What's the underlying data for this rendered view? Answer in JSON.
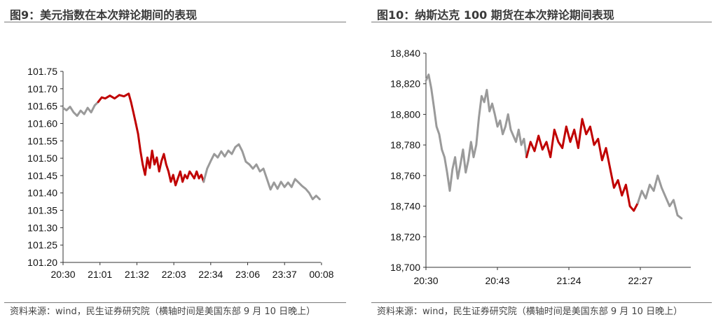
{
  "colors": {
    "gray_series": "#9a9a9a",
    "red_series": "#c00000",
    "axis": "#333333"
  },
  "charts": [
    {
      "title": "图9：美元指数在本次辩论期间的表现",
      "source": "资料来源：wind，民生证券研究院（横轴时间是美国东部 9 月 10 日晚上）",
      "chart_data": {
        "type": "line",
        "x_tick_labels": [
          "20:30",
          "21:01",
          "21:32",
          "22:03",
          "22:34",
          "23:06",
          "23:37",
          "00:08"
        ],
        "y_tick_labels": [
          "101.20",
          "101.25",
          "101.30",
          "101.35",
          "101.40",
          "101.45",
          "101.50",
          "101.55",
          "101.60",
          "101.65",
          "101.70",
          "101.75"
        ],
        "ylim": [
          101.2,
          101.75
        ],
        "x_range_minutes": [
          0,
          220
        ],
        "grid": false,
        "series": [
          {
            "role": "before",
            "color": "#9a9a9a",
            "x": [
              0,
              3,
              6,
              9,
              12,
              15,
              18,
              21,
              24,
              27,
              30
            ],
            "y": [
              101.645,
              101.638,
              101.648,
              101.632,
              101.622,
              101.637,
              101.627,
              101.645,
              101.632,
              101.652,
              101.662
            ]
          },
          {
            "role": "debate",
            "color": "#c00000",
            "x": [
              30,
              33,
              36,
              40,
              44,
              48,
              52,
              56,
              58,
              60,
              62,
              64,
              66,
              68,
              70,
              72,
              74,
              76,
              78,
              80,
              82,
              84,
              86,
              88,
              90,
              92,
              94,
              96,
              98,
              100,
              102,
              104,
              106,
              108,
              110,
              112,
              114,
              116,
              118,
              120
            ],
            "y": [
              101.662,
              101.675,
              101.672,
              101.68,
              101.672,
              101.682,
              101.678,
              101.686,
              101.662,
              101.632,
              101.602,
              101.57,
              101.522,
              101.482,
              101.452,
              101.502,
              101.472,
              101.522,
              101.482,
              101.502,
              101.462,
              101.492,
              101.512,
              101.482,
              101.462,
              101.432,
              101.452,
              101.422,
              101.442,
              101.462,
              101.432,
              101.452,
              101.442,
              101.462,
              101.452,
              101.442,
              101.462,
              101.442,
              101.452,
              101.432
            ]
          },
          {
            "role": "after",
            "color": "#9a9a9a",
            "x": [
              120,
              123,
              126,
              129,
              132,
              135,
              138,
              141,
              144,
              147,
              150,
              153,
              156,
              159,
              162,
              165,
              168,
              171,
              174,
              177,
              180,
              183,
              186,
              189,
              192,
              195,
              198,
              201,
              204,
              207,
              210,
              213,
              216,
              219
            ],
            "y": [
              101.432,
              101.47,
              101.492,
              101.512,
              101.502,
              101.52,
              101.505,
              101.522,
              101.512,
              101.532,
              101.54,
              101.52,
              101.49,
              101.482,
              101.47,
              101.482,
              101.462,
              101.47,
              101.44,
              101.41,
              101.43,
              101.412,
              101.432,
              101.417,
              101.43,
              101.417,
              101.44,
              101.43,
              101.42,
              101.412,
              101.4,
              101.382,
              101.392,
              101.382
            ]
          }
        ]
      }
    },
    {
      "title": "图10：纳斯达克 100 期货在本次辩论期间表现",
      "source": "资料来源：wind，民生证券研究院（横轴时间是美国东部 9 月 10 日晚上）",
      "chart_data": {
        "type": "line",
        "x_tick_labels": [
          "20:30",
          "20:43",
          "21:24",
          "22:27"
        ],
        "y_tick_labels": [
          "18,700",
          "18,720",
          "18,740",
          "18,760",
          "18,780",
          "18,800",
          "18,820",
          "18,840"
        ],
        "ylim": [
          18700,
          18840
        ],
        "x_range_minutes": [
          0,
          200
        ],
        "grid": false,
        "series": [
          {
            "role": "before",
            "color": "#9a9a9a",
            "x": [
              0,
              2,
              4,
              6,
              8,
              10,
              12,
              14,
              16,
              18,
              20,
              22,
              24,
              26,
              28,
              30,
              32,
              34,
              36,
              38,
              40,
              42,
              44,
              46,
              48,
              50,
              52,
              54,
              56,
              58,
              60,
              62,
              64,
              66,
              68,
              70,
              72,
              74,
              76
            ],
            "y": [
              18822,
              18826,
              18817,
              18805,
              18792,
              18787,
              18777,
              18772,
              18762,
              18750,
              18764,
              18772,
              18758,
              18767,
              18777,
              18762,
              18770,
              18782,
              18772,
              18780,
              18798,
              18812,
              18808,
              18816,
              18802,
              18807,
              18800,
              18792,
              18796,
              18787,
              18792,
              18800,
              18790,
              18786,
              18782,
              18790,
              18780,
              18784,
              18772
            ]
          },
          {
            "role": "debate",
            "color": "#c00000",
            "x": [
              76,
              79,
              82,
              85,
              88,
              91,
              94,
              97,
              100,
              103,
              106,
              109,
              112,
              115,
              118,
              121,
              124,
              127,
              130,
              133,
              136,
              139,
              142,
              145,
              148,
              151,
              154,
              157,
              160
            ],
            "y": [
              18772,
              18782,
              18776,
              18786,
              18777,
              18782,
              18772,
              18790,
              18782,
              18778,
              18792,
              18782,
              18790,
              18778,
              18797,
              18787,
              18792,
              18780,
              18784,
              18770,
              18778,
              18765,
              18752,
              18757,
              18747,
              18754,
              18740,
              18737,
              18742
            ]
          },
          {
            "role": "after",
            "color": "#9a9a9a",
            "x": [
              160,
              163,
              166,
              169,
              172,
              175,
              178,
              181,
              184,
              187,
              190,
              193
            ],
            "y": [
              18742,
              18750,
              18745,
              18754,
              18750,
              18760,
              18752,
              18746,
              18740,
              18744,
              18734,
              18732
            ]
          }
        ]
      }
    }
  ]
}
